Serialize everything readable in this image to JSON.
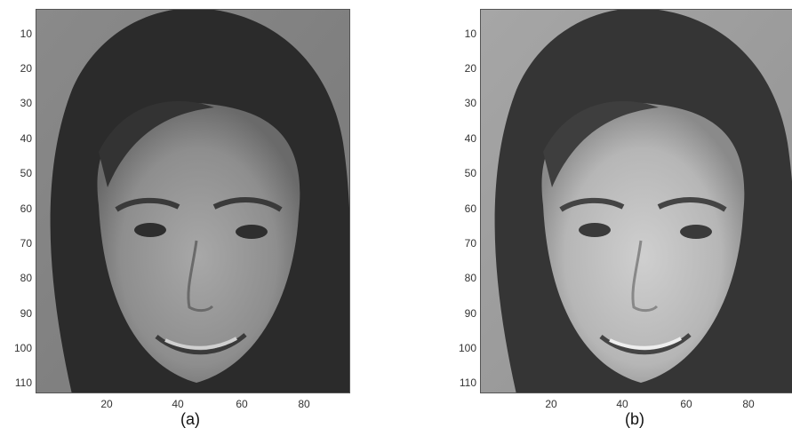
{
  "panels": [
    {
      "caption": "(a)",
      "y_ticks": [
        "10",
        "20",
        "30",
        "40",
        "50",
        "60",
        "70",
        "80",
        "90",
        "100",
        "110"
      ],
      "x_ticks": [
        "20",
        "40",
        "60",
        "80"
      ],
      "image_description": "grayscale face, original"
    },
    {
      "caption": "(b)",
      "y_ticks": [
        "10",
        "20",
        "30",
        "40",
        "50",
        "60",
        "70",
        "80",
        "90",
        "100",
        "110"
      ],
      "x_ticks": [
        "20",
        "40",
        "60",
        "80"
      ],
      "image_description": "grayscale face, enhanced/brighter"
    }
  ],
  "colors": {
    "background": "#ffffff",
    "axis": "#555555"
  }
}
